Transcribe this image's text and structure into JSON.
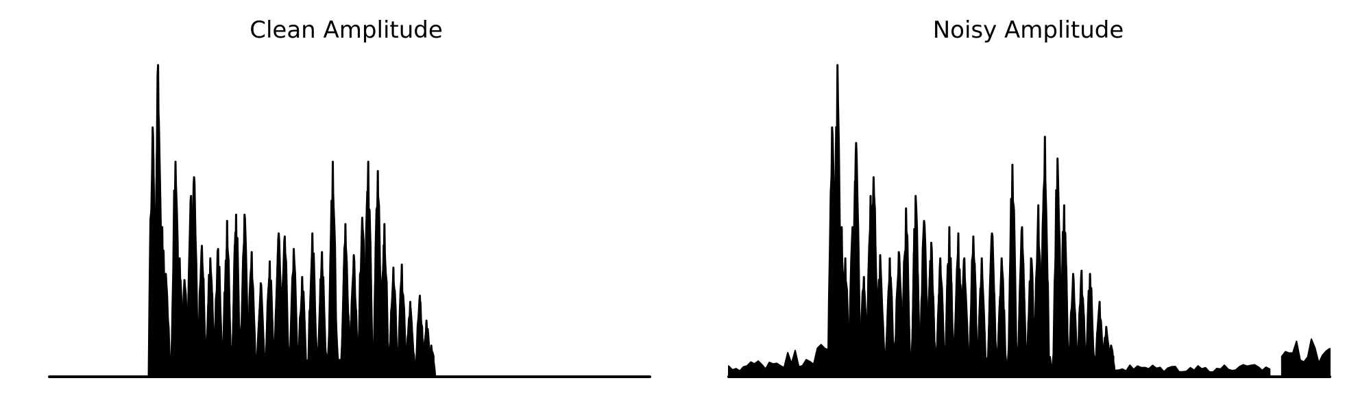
{
  "chart_data": [
    {
      "type": "area",
      "title": "Clean Amplitude",
      "xlabel": "",
      "ylabel": "",
      "axes": "off",
      "grid": false,
      "color": "#000000",
      "ylim": [
        0,
        1.0
      ],
      "n_points": 200,
      "bursts": [
        {
          "x": 0.172,
          "value": 0.8
        },
        {
          "x": 0.181,
          "value": 1.0
        },
        {
          "x": 0.188,
          "value": 0.48
        },
        {
          "x": 0.194,
          "value": 0.33
        },
        {
          "x": 0.21,
          "value": 0.69
        },
        {
          "x": 0.217,
          "value": 0.38
        },
        {
          "x": 0.225,
          "value": 0.31
        },
        {
          "x": 0.236,
          "value": 0.58
        },
        {
          "x": 0.241,
          "value": 0.64
        },
        {
          "x": 0.254,
          "value": 0.42
        },
        {
          "x": 0.268,
          "value": 0.38
        },
        {
          "x": 0.281,
          "value": 0.41
        },
        {
          "x": 0.296,
          "value": 0.5
        },
        {
          "x": 0.311,
          "value": 0.52
        },
        {
          "x": 0.325,
          "value": 0.52
        },
        {
          "x": 0.337,
          "value": 0.4
        },
        {
          "x": 0.352,
          "value": 0.3
        },
        {
          "x": 0.367,
          "value": 0.37
        },
        {
          "x": 0.382,
          "value": 0.46
        },
        {
          "x": 0.392,
          "value": 0.45
        },
        {
          "x": 0.407,
          "value": 0.41
        },
        {
          "x": 0.421,
          "value": 0.32
        },
        {
          "x": 0.438,
          "value": 0.46
        },
        {
          "x": 0.454,
          "value": 0.4
        },
        {
          "x": 0.472,
          "value": 0.69
        },
        {
          "x": 0.493,
          "value": 0.49
        },
        {
          "x": 0.507,
          "value": 0.39
        },
        {
          "x": 0.521,
          "value": 0.51
        },
        {
          "x": 0.531,
          "value": 0.69
        },
        {
          "x": 0.547,
          "value": 0.66
        },
        {
          "x": 0.558,
          "value": 0.49
        },
        {
          "x": 0.573,
          "value": 0.35
        },
        {
          "x": 0.587,
          "value": 0.36
        },
        {
          "x": 0.601,
          "value": 0.24
        },
        {
          "x": 0.617,
          "value": 0.26
        },
        {
          "x": 0.628,
          "value": 0.18
        },
        {
          "x": 0.636,
          "value": 0.1
        }
      ],
      "floor_ranges": []
    },
    {
      "type": "area",
      "title": "Noisy Amplitude",
      "xlabel": "",
      "ylabel": "",
      "axes": "off",
      "grid": false,
      "color": "#000000",
      "ylim": [
        0,
        1.0
      ],
      "n_points": 200,
      "bursts": [
        {
          "x": 0.172,
          "value": 0.8
        },
        {
          "x": 0.181,
          "value": 1.0
        },
        {
          "x": 0.188,
          "value": 0.48
        },
        {
          "x": 0.194,
          "value": 0.38
        },
        {
          "x": 0.206,
          "value": 0.48
        },
        {
          "x": 0.212,
          "value": 0.75
        },
        {
          "x": 0.225,
          "value": 0.32
        },
        {
          "x": 0.236,
          "value": 0.58
        },
        {
          "x": 0.241,
          "value": 0.64
        },
        {
          "x": 0.252,
          "value": 0.39
        },
        {
          "x": 0.268,
          "value": 0.38
        },
        {
          "x": 0.283,
          "value": 0.4
        },
        {
          "x": 0.295,
          "value": 0.54
        },
        {
          "x": 0.311,
          "value": 0.58
        },
        {
          "x": 0.325,
          "value": 0.5
        },
        {
          "x": 0.337,
          "value": 0.43
        },
        {
          "x": 0.352,
          "value": 0.38
        },
        {
          "x": 0.367,
          "value": 0.48
        },
        {
          "x": 0.382,
          "value": 0.46
        },
        {
          "x": 0.392,
          "value": 0.38
        },
        {
          "x": 0.407,
          "value": 0.45
        },
        {
          "x": 0.421,
          "value": 0.38
        },
        {
          "x": 0.438,
          "value": 0.46
        },
        {
          "x": 0.454,
          "value": 0.38
        },
        {
          "x": 0.472,
          "value": 0.68
        },
        {
          "x": 0.488,
          "value": 0.48
        },
        {
          "x": 0.503,
          "value": 0.38
        },
        {
          "x": 0.515,
          "value": 0.55
        },
        {
          "x": 0.526,
          "value": 0.77
        },
        {
          "x": 0.547,
          "value": 0.7
        },
        {
          "x": 0.558,
          "value": 0.55
        },
        {
          "x": 0.573,
          "value": 0.33
        },
        {
          "x": 0.587,
          "value": 0.34
        },
        {
          "x": 0.601,
          "value": 0.33
        },
        {
          "x": 0.617,
          "value": 0.24
        },
        {
          "x": 0.628,
          "value": 0.16
        },
        {
          "x": 0.636,
          "value": 0.1
        }
      ],
      "floor_ranges": [
        {
          "x0": 0.0,
          "x1": 0.172,
          "value": 0.09
        },
        {
          "x0": 0.636,
          "x1": 0.9,
          "value": 0.03
        },
        {
          "x0": 0.92,
          "x1": 1.0,
          "value": 0.09
        }
      ]
    }
  ]
}
